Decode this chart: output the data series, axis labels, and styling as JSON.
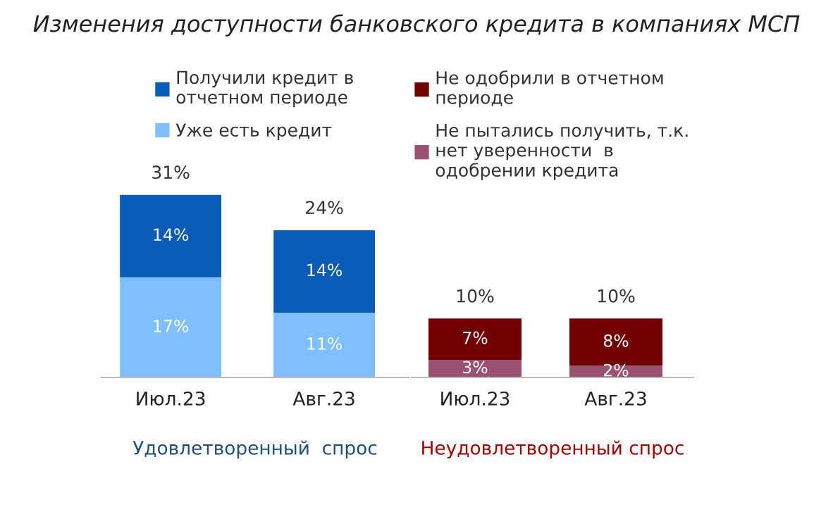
{
  "chart_data": [
    {
      "type": "bar",
      "stacked": true,
      "title": "Изменения доступности банковского кредита в компаниях МСП",
      "xlabel": "Удовлетворенный  спрос",
      "categories": [
        "Июл.23",
        "Авг.23"
      ],
      "legend": "top",
      "totals": [
        "31%",
        "24%"
      ],
      "series": [
        {
          "name": "Уже есть кредит",
          "color": "#7fbfff",
          "values": [
            17,
            11
          ],
          "value_labels": [
            "17%",
            "11%"
          ]
        },
        {
          "name": "Получили кредит в\nотчетном периоде",
          "color": "#0a5cb8",
          "values": [
            14,
            14
          ],
          "value_labels": [
            "14%",
            "14%"
          ]
        }
      ]
    },
    {
      "type": "bar",
      "stacked": true,
      "xlabel": "Неудовлетворенный спрос",
      "categories": [
        "Июл.23",
        "Авг.23"
      ],
      "legend": "top",
      "totals": [
        "10%",
        "10%"
      ],
      "series": [
        {
          "name": "Не пытались получить, т.к.\nнет уверенности  в\nодобрении кредита",
          "color": "#9b5272",
          "values": [
            3,
            2
          ],
          "value_labels": [
            "3%",
            "2%"
          ]
        },
        {
          "name": "Не одобрили в отчетном\nпериоде",
          "color": "#720000",
          "values": [
            7,
            8
          ],
          "value_labels": [
            "7%",
            "8%"
          ]
        }
      ]
    }
  ]
}
